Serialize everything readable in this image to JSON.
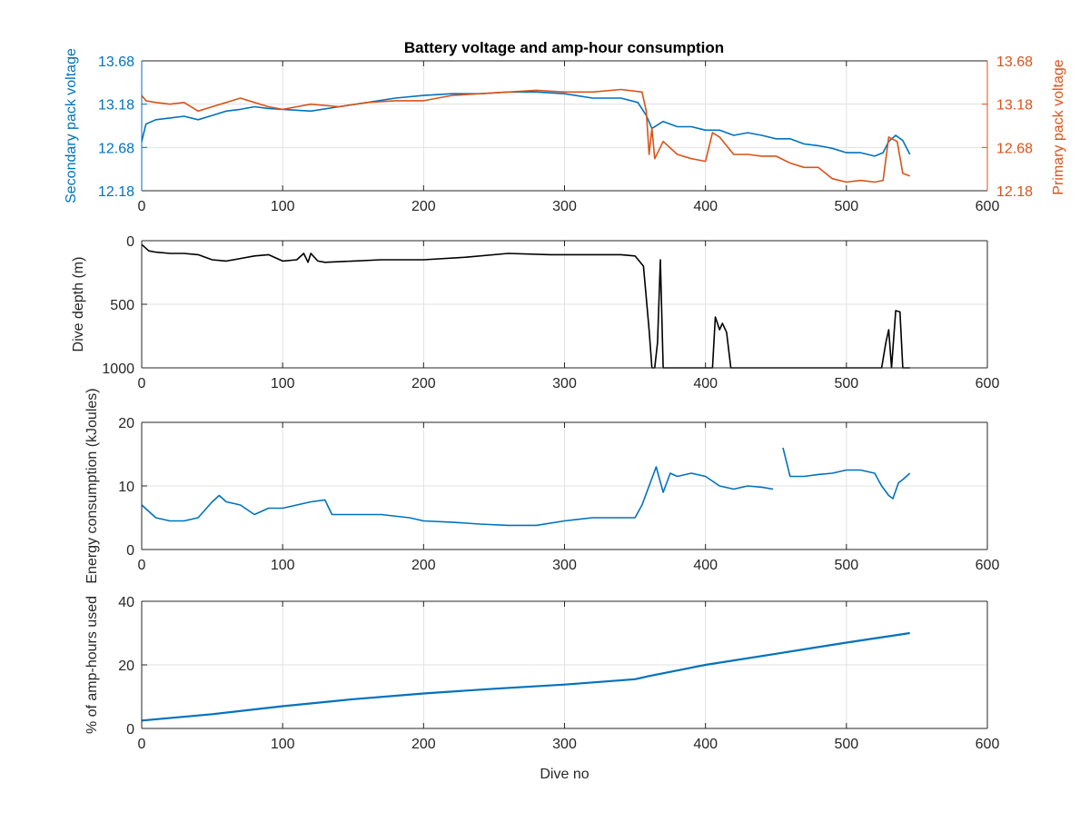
{
  "title": "Battery voltage and amp-hour consumption",
  "colors": {
    "blue": "#0072BD",
    "orange": "#D95319",
    "black": "#000000",
    "grid": "#e1e1e1",
    "axis": "#262626"
  },
  "chart_data": [
    {
      "type": "line",
      "panel": "voltage",
      "title": "Battery voltage and amp-hour consumption",
      "xlabel": "",
      "ylabel": "Secondary pack voltage",
      "ylabel_right": "Primary pack voltage",
      "xlim": [
        0,
        600
      ],
      "ylim": [
        12.18,
        13.68
      ],
      "xticks": [
        "0",
        "100",
        "200",
        "300",
        "400",
        "500",
        "600"
      ],
      "yticks": [
        "12.18",
        "12.68",
        "13.18",
        "13.68"
      ],
      "yticks_right": [
        "12.18",
        "12.68",
        "13.18",
        "13.68"
      ],
      "grid": true,
      "series": [
        {
          "axis": "left",
          "color": "#0072BD",
          "x": [
            0,
            3,
            10,
            20,
            30,
            40,
            50,
            60,
            70,
            80,
            90,
            100,
            120,
            140,
            160,
            180,
            200,
            220,
            240,
            260,
            280,
            300,
            320,
            340,
            352,
            358,
            362,
            370,
            380,
            390,
            400,
            410,
            420,
            430,
            440,
            450,
            460,
            470,
            480,
            490,
            500,
            510,
            520,
            526,
            530,
            535,
            540,
            545
          ],
          "y": [
            12.75,
            12.95,
            13.0,
            13.02,
            13.04,
            13.0,
            13.05,
            13.1,
            13.12,
            13.15,
            13.13,
            13.12,
            13.1,
            13.15,
            13.2,
            13.25,
            13.28,
            13.3,
            13.3,
            13.32,
            13.32,
            13.3,
            13.25,
            13.25,
            13.2,
            13.05,
            12.9,
            12.98,
            12.92,
            12.92,
            12.88,
            12.88,
            12.82,
            12.85,
            12.82,
            12.78,
            12.78,
            12.72,
            12.7,
            12.67,
            12.62,
            12.62,
            12.58,
            12.62,
            12.75,
            12.82,
            12.76,
            12.6
          ]
        },
        {
          "axis": "right",
          "color": "#D95319",
          "x": [
            0,
            3,
            10,
            20,
            30,
            40,
            50,
            60,
            70,
            80,
            90,
            100,
            120,
            140,
            160,
            180,
            200,
            220,
            240,
            260,
            280,
            300,
            320,
            340,
            355,
            358,
            360,
            362,
            364,
            370,
            380,
            390,
            400,
            405,
            410,
            420,
            430,
            440,
            450,
            460,
            470,
            480,
            490,
            500,
            510,
            520,
            526,
            530,
            536,
            540,
            545
          ],
          "y": [
            13.28,
            13.22,
            13.2,
            13.18,
            13.2,
            13.1,
            13.15,
            13.2,
            13.25,
            13.2,
            13.15,
            13.12,
            13.18,
            13.15,
            13.2,
            13.22,
            13.22,
            13.28,
            13.3,
            13.32,
            13.34,
            13.32,
            13.32,
            13.35,
            13.32,
            13.1,
            12.6,
            12.9,
            12.55,
            12.75,
            12.6,
            12.55,
            12.52,
            12.85,
            12.8,
            12.6,
            12.6,
            12.58,
            12.58,
            12.5,
            12.45,
            12.45,
            12.32,
            12.28,
            12.3,
            12.28,
            12.3,
            12.8,
            12.75,
            12.38,
            12.35
          ]
        }
      ]
    },
    {
      "type": "line",
      "panel": "depth",
      "xlabel": "",
      "ylabel": "Dive depth (m)",
      "xlim": [
        0,
        600
      ],
      "ylim": [
        0,
        1000
      ],
      "reversed": true,
      "xticks": [
        "0",
        "100",
        "200",
        "300",
        "400",
        "500",
        "600"
      ],
      "yticks": [
        "0",
        "500",
        "1000"
      ],
      "grid": true,
      "series": [
        {
          "color": "#000000",
          "x": [
            0,
            5,
            10,
            20,
            30,
            40,
            50,
            60,
            70,
            80,
            90,
            100,
            110,
            115,
            118,
            120,
            125,
            130,
            150,
            170,
            200,
            230,
            260,
            290,
            320,
            340,
            350,
            356,
            360,
            362,
            364,
            366,
            368,
            370,
            380,
            400,
            405,
            407,
            410,
            412,
            415,
            418,
            420,
            440,
            460,
            480,
            500,
            520,
            525,
            528,
            530,
            532,
            535,
            538,
            540,
            545
          ],
          "y": [
            30,
            80,
            90,
            100,
            100,
            110,
            150,
            160,
            140,
            120,
            110,
            160,
            150,
            100,
            170,
            100,
            160,
            170,
            160,
            150,
            150,
            130,
            100,
            110,
            110,
            110,
            120,
            200,
            700,
            1000,
            1000,
            800,
            150,
            1000,
            1000,
            1000,
            1000,
            600,
            700,
            650,
            720,
            1000,
            1000,
            1000,
            1000,
            1000,
            1000,
            1000,
            1000,
            800,
            700,
            1000,
            550,
            560,
            1000,
            1000
          ]
        }
      ]
    },
    {
      "type": "line",
      "panel": "energy",
      "xlabel": "",
      "ylabel": "Energy consumption (kJoules)",
      "xlim": [
        0,
        600
      ],
      "ylim": [
        0,
        20
      ],
      "xticks": [
        "0",
        "100",
        "200",
        "300",
        "400",
        "500",
        "600"
      ],
      "yticks": [
        "0",
        "10",
        "20"
      ],
      "grid": true,
      "series": [
        {
          "color": "#0072BD",
          "x": [
            0,
            5,
            10,
            20,
            30,
            40,
            50,
            55,
            60,
            70,
            80,
            90,
            100,
            110,
            120,
            130,
            135,
            150,
            170,
            190,
            200,
            220,
            240,
            260,
            280,
            300,
            320,
            340,
            350,
            355,
            360,
            365,
            370,
            375,
            380,
            390,
            400,
            410,
            420,
            430,
            440,
            448
          ],
          "y": [
            7.0,
            6.0,
            5.0,
            4.5,
            4.5,
            5.0,
            7.5,
            8.5,
            7.5,
            7.0,
            5.5,
            6.5,
            6.5,
            7.0,
            7.5,
            7.8,
            5.5,
            5.5,
            5.5,
            5.0,
            4.5,
            4.3,
            4.0,
            3.8,
            3.8,
            4.5,
            5.0,
            5.0,
            5.0,
            7.0,
            10.0,
            13.0,
            9.0,
            12.0,
            11.5,
            12.0,
            11.5,
            10.0,
            9.5,
            10.0,
            9.8,
            9.5
          ]
        },
        {
          "color": "#0072BD",
          "x": [
            455,
            460,
            470,
            480,
            490,
            500,
            510,
            520,
            525,
            530,
            533,
            537,
            540,
            545
          ],
          "y": [
            16.0,
            11.5,
            11.5,
            11.8,
            12.0,
            12.5,
            12.5,
            12.0,
            10.0,
            8.5,
            8.0,
            10.5,
            11.0,
            12.0
          ]
        }
      ]
    },
    {
      "type": "line",
      "panel": "amphours",
      "xlabel": "Dive no",
      "ylabel": "% of amp-hours used",
      "xlim": [
        0,
        600
      ],
      "ylim": [
        0,
        40
      ],
      "xticks": [
        "0",
        "100",
        "200",
        "300",
        "400",
        "500",
        "600"
      ],
      "yticks": [
        "0",
        "20",
        "40"
      ],
      "grid": true,
      "series": [
        {
          "color": "#0072BD",
          "x": [
            0,
            50,
            100,
            150,
            200,
            250,
            300,
            350,
            360,
            400,
            450,
            500,
            545
          ],
          "y": [
            2.5,
            4.5,
            7.0,
            9.2,
            11.0,
            12.5,
            13.8,
            15.5,
            16.5,
            20.0,
            23.5,
            27.0,
            30.0
          ]
        }
      ]
    }
  ]
}
